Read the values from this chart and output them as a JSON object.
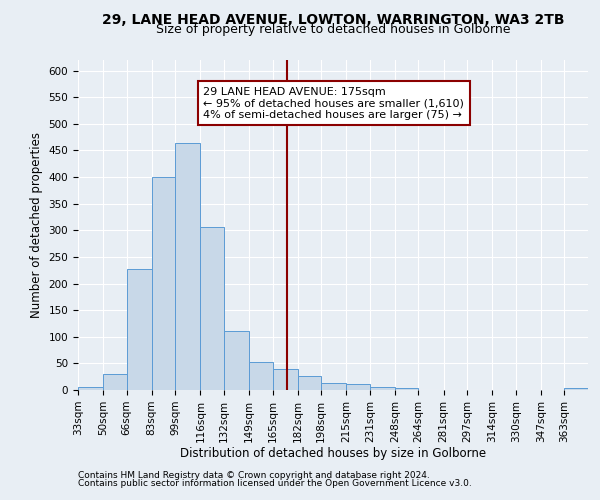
{
  "title": "29, LANE HEAD AVENUE, LOWTON, WARRINGTON, WA3 2TB",
  "subtitle": "Size of property relative to detached houses in Golborne",
  "xlabel": "Distribution of detached houses by size in Golborne",
  "ylabel": "Number of detached properties",
  "footer_line1": "Contains HM Land Registry data © Crown copyright and database right 2024.",
  "footer_line2": "Contains public sector information licensed under the Open Government Licence v3.0.",
  "bin_labels": [
    "33sqm",
    "50sqm",
    "66sqm",
    "83sqm",
    "99sqm",
    "116sqm",
    "132sqm",
    "149sqm",
    "165sqm",
    "182sqm",
    "198sqm",
    "215sqm",
    "231sqm",
    "248sqm",
    "264sqm",
    "281sqm",
    "297sqm",
    "314sqm",
    "330sqm",
    "347sqm",
    "363sqm"
  ],
  "bin_edges": [
    33,
    50,
    66,
    83,
    99,
    116,
    132,
    149,
    165,
    182,
    198,
    215,
    231,
    248,
    264,
    281,
    297,
    314,
    330,
    347,
    363
  ],
  "bar_heights": [
    5,
    30,
    228,
    400,
    465,
    307,
    110,
    53,
    40,
    27,
    14,
    12,
    5,
    4,
    0,
    0,
    0,
    0,
    0,
    0,
    4
  ],
  "bar_color": "#c8d8e8",
  "bar_edge_color": "#5b9bd5",
  "property_value": 175,
  "vline_color": "#8b0000",
  "annotation_line1": "29 LANE HEAD AVENUE: 175sqm",
  "annotation_line2": "← 95% of detached houses are smaller (1,610)",
  "annotation_line3": "4% of semi-detached houses are larger (75) →",
  "annotation_box_color": "white",
  "annotation_box_edge_color": "#8b0000",
  "ylim": [
    0,
    620
  ],
  "yticks": [
    0,
    50,
    100,
    150,
    200,
    250,
    300,
    350,
    400,
    450,
    500,
    550,
    600
  ],
  "background_color": "#e8eef4",
  "grid_color": "white",
  "title_fontsize": 10,
  "subtitle_fontsize": 9,
  "axis_label_fontsize": 8.5,
  "tick_fontsize": 7.5,
  "footer_fontsize": 6.5,
  "annotation_fontsize": 8
}
